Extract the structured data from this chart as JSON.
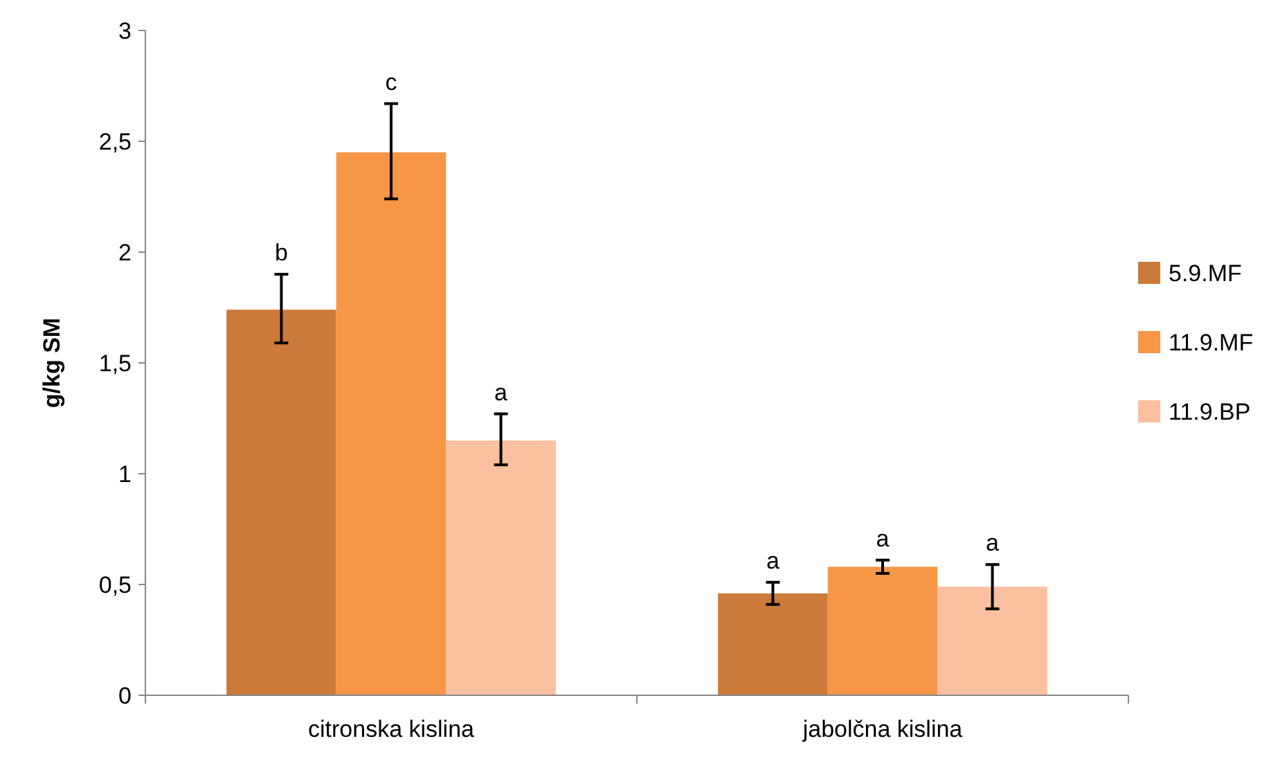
{
  "chart_data": {
    "type": "bar",
    "ylabel": "g/kg SM",
    "categories": [
      "citronska kislina",
      "jabolčna kislina"
    ],
    "series": [
      {
        "name": "5.9.MF",
        "color": "#cc7a3a",
        "values": [
          1.74,
          0.46
        ],
        "errors": [
          [
            1.59,
            1.9
          ],
          [
            0.41,
            0.51
          ]
        ]
      },
      {
        "name": "11.9.MF",
        "color": "#f79646",
        "values": [
          2.45,
          0.58
        ],
        "errors": [
          [
            2.24,
            2.67
          ],
          [
            0.55,
            0.61
          ]
        ]
      },
      {
        "name": "11.9.BP",
        "color": "#fac0a0",
        "values": [
          1.15,
          0.49
        ],
        "errors": [
          [
            1.04,
            1.27
          ],
          [
            0.39,
            0.59
          ]
        ]
      }
    ],
    "ylim": [
      0,
      3
    ],
    "yticks": [
      0,
      {
        "value": 0.5,
        "label": "0,5"
      },
      1,
      {
        "value": 1.5,
        "label": "1,5"
      },
      2,
      {
        "value": 2.5,
        "label": "2,5"
      },
      3
    ],
    "annotations": [
      "b",
      "c",
      "a",
      "a",
      "a",
      "a"
    ],
    "grid": false,
    "legend": "right"
  }
}
